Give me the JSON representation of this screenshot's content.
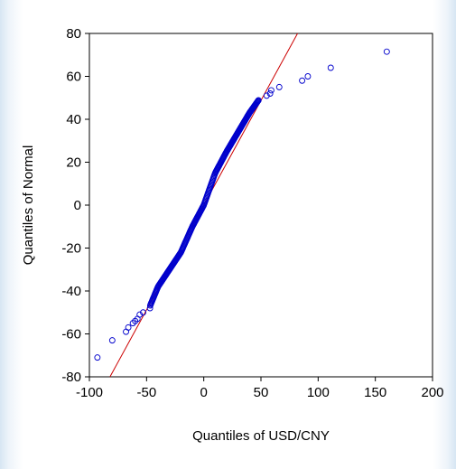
{
  "chart_data": {
    "type": "scatter",
    "title": "",
    "xlabel": "Quantiles of USD/CNY",
    "ylabel": "Quantiles of Normal",
    "xlim": [
      -100,
      200
    ],
    "ylim": [
      -80,
      80
    ],
    "xticks": [
      -100,
      -50,
      0,
      50,
      100,
      150,
      200
    ],
    "yticks": [
      -80,
      -60,
      -40,
      -20,
      0,
      20,
      40,
      60,
      80
    ],
    "xtick_labels": [
      "-100",
      "-50",
      "0",
      "50",
      "100",
      "150",
      "200"
    ],
    "ytick_labels": [
      "-80",
      "-60",
      "-40",
      "-20",
      "0",
      "20",
      "40",
      "60",
      "80"
    ],
    "grid": false,
    "legend": "none",
    "colors": {
      "points": "#0000cc",
      "reference_line": "#cc0000",
      "axes": "#000000"
    },
    "reference_line": {
      "x": [
        -82,
        82
      ],
      "y": [
        -80,
        80
      ]
    },
    "tail_points": [
      {
        "x": -93,
        "y": -71
      },
      {
        "x": -80,
        "y": -63
      },
      {
        "x": -68,
        "y": -59
      },
      {
        "x": -66,
        "y": -57
      },
      {
        "x": -62,
        "y": -55
      },
      {
        "x": -60,
        "y": -54
      },
      {
        "x": -58,
        "y": -53
      },
      {
        "x": -56,
        "y": -51
      },
      {
        "x": -53,
        "y": -50
      },
      {
        "x": -47,
        "y": -48
      },
      {
        "x": 55,
        "y": 51
      },
      {
        "x": 58,
        "y": 52
      },
      {
        "x": 59,
        "y": 53.5
      },
      {
        "x": 66,
        "y": 55
      },
      {
        "x": 86,
        "y": 58
      },
      {
        "x": 91,
        "y": 60
      },
      {
        "x": 111,
        "y": 64
      },
      {
        "x": 160,
        "y": 71.5
      }
    ],
    "body_curve": [
      {
        "x": -47,
        "y": -47
      },
      {
        "x": -40,
        "y": -38
      },
      {
        "x": -30,
        "y": -30
      },
      {
        "x": -20,
        "y": -22
      },
      {
        "x": -10,
        "y": -10
      },
      {
        "x": 0,
        "y": 0
      },
      {
        "x": 10,
        "y": 15
      },
      {
        "x": 20,
        "y": 25
      },
      {
        "x": 30,
        "y": 34
      },
      {
        "x": 40,
        "y": 43
      },
      {
        "x": 48,
        "y": 49
      }
    ],
    "body_point_count": 260
  }
}
